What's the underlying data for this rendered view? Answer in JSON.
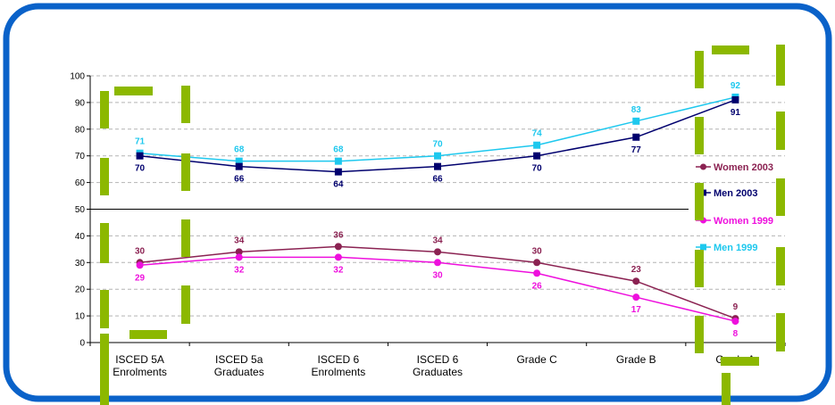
{
  "chart_data": {
    "type": "line",
    "title": "",
    "xlabel": "",
    "ylabel": "",
    "ylim": [
      0,
      100
    ],
    "yticks": [
      0,
      10,
      20,
      30,
      40,
      50,
      60,
      70,
      80,
      90,
      100
    ],
    "grid": "dashed horizontal",
    "legend_position": "right",
    "categories": [
      [
        "ISCED 5A",
        "Enrolments"
      ],
      [
        "ISCED 5a",
        "Graduates"
      ],
      [
        "ISCED 6",
        "Enrolments"
      ],
      [
        "ISCED 6",
        "Graduates"
      ],
      [
        "Grade C"
      ],
      [
        "Grade B"
      ],
      [
        "Grade A"
      ]
    ],
    "series": [
      {
        "name": "Men 1999",
        "color": "#1EC8EE",
        "marker": "square",
        "values": [
          71,
          68,
          68,
          70,
          74,
          83,
          92
        ],
        "label_side": "above"
      },
      {
        "name": "Men 2003",
        "color": "#00006E",
        "marker": "square",
        "values": [
          70,
          66,
          64,
          66,
          70,
          77,
          91
        ],
        "label_side": "below"
      },
      {
        "name": "Women 2003",
        "color": "#8B2252",
        "marker": "circle",
        "values": [
          30,
          34,
          36,
          34,
          30,
          23,
          9
        ],
        "label_side": "above"
      },
      {
        "name": "Women 1999",
        "color": "#EE10DD",
        "marker": "circle",
        "values": [
          29,
          32,
          32,
          30,
          26,
          17,
          8
        ],
        "label_side": "below"
      }
    ],
    "legend_order": [
      "Women 2003",
      "Men 2003",
      "Women 1999",
      "Men 1999"
    ]
  },
  "colors": {
    "frame_blue": "#0A62C9",
    "annotation_green": "#8CB800"
  }
}
